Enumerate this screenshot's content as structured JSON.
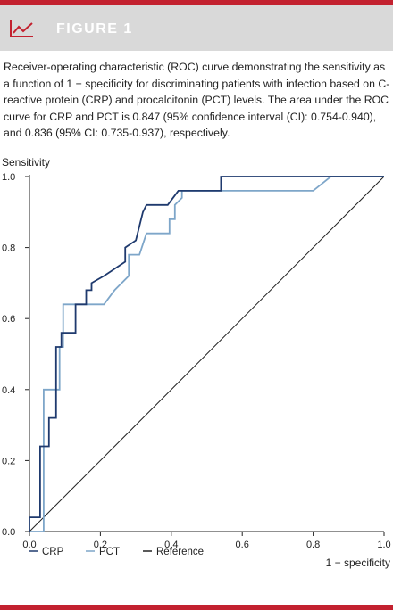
{
  "figure": {
    "label": "FIGURE 1"
  },
  "icon": "line-chart-icon",
  "colors": {
    "accent": "#c3212f",
    "header_bg": "#d9d9d9",
    "crp": "#1f3a6e",
    "pct": "#7ea6c9",
    "reference": "#222222"
  },
  "caption": "Receiver-operating characteristic (ROC) curve demonstrating the sensitivity as a function of 1 − specificity for discriminating patients with infection based on C-reactive protein (CRP) and procalcitonin (PCT) levels. The area under the ROC curve for CRP and PCT is 0.847 (95% confidence interval (CI): 0.754-0.940), and 0.836 (95% CI: 0.735-0.937), respectively.",
  "chart_data": {
    "type": "line",
    "ylabel": "Sensitivity",
    "xlabel": "1 − specificity",
    "xlim": [
      0,
      1
    ],
    "ylim": [
      0,
      1
    ],
    "x_ticks": [
      "0.0",
      "0.2",
      "0.4",
      "0.6",
      "0.8",
      "1.0"
    ],
    "y_ticks": [
      "0.0",
      "0.2",
      "0.4",
      "0.6",
      "0.8",
      "1.0"
    ],
    "grid": false,
    "legend_position": "bottom",
    "series": [
      {
        "name": "CRP",
        "color": "#1f3a6e",
        "x": [
          0,
          0,
          0.03,
          0.03,
          0.055,
          0.055,
          0.075,
          0.075,
          0.09,
          0.09,
          0.13,
          0.13,
          0.16,
          0.16,
          0.175,
          0.175,
          0.21,
          0.27,
          0.27,
          0.3,
          0.32,
          0.33,
          0.39,
          0.42,
          0.42,
          0.54,
          0.54,
          1.0
        ],
        "y": [
          0,
          0.04,
          0.04,
          0.24,
          0.24,
          0.32,
          0.32,
          0.52,
          0.52,
          0.56,
          0.56,
          0.64,
          0.64,
          0.68,
          0.68,
          0.7,
          0.72,
          0.76,
          0.8,
          0.82,
          0.9,
          0.92,
          0.92,
          0.96,
          0.96,
          0.96,
          1.0,
          1.0
        ]
      },
      {
        "name": "PCT",
        "color": "#7ea6c9",
        "x": [
          0,
          0.04,
          0.04,
          0.085,
          0.085,
          0.095,
          0.095,
          0.21,
          0.24,
          0.28,
          0.28,
          0.31,
          0.33,
          0.33,
          0.395,
          0.395,
          0.41,
          0.41,
          0.43,
          0.43,
          0.8,
          0.85,
          1.0
        ],
        "y": [
          0,
          0,
          0.4,
          0.4,
          0.52,
          0.52,
          0.64,
          0.64,
          0.68,
          0.72,
          0.78,
          0.78,
          0.84,
          0.84,
          0.84,
          0.88,
          0.88,
          0.92,
          0.94,
          0.96,
          0.96,
          1.0,
          1.0
        ]
      },
      {
        "name": "Reference",
        "color": "#222222",
        "x": [
          0,
          1
        ],
        "y": [
          0,
          1
        ]
      }
    ]
  }
}
